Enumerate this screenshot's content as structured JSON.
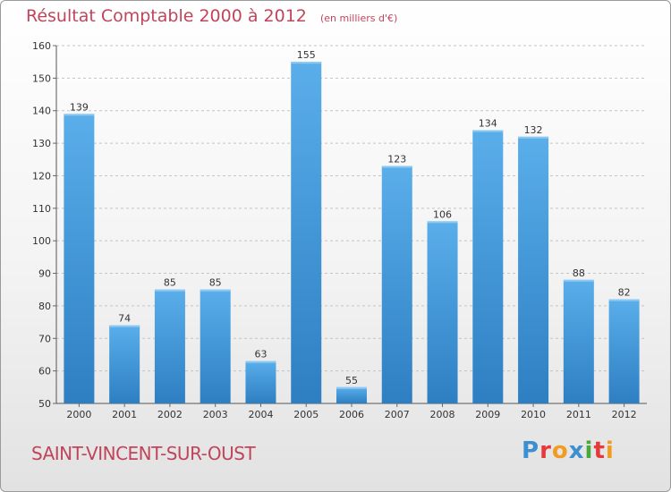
{
  "header": {
    "title": "Résultat Comptable 2000 à 2012",
    "subtitle": "(en milliers d'€)"
  },
  "footer": {
    "town": "SAINT-VINCENT-SUR-OUST",
    "brand": "Proxiti"
  },
  "colors": {
    "bar_light": "#5aaeea",
    "bar_dark": "#2d7fc2",
    "title": "#c0455a",
    "brand_letters": [
      "#3c8fd0",
      "#e63a3a",
      "#f29c1f",
      "#3c8fd0",
      "#4aa83a",
      "#e63a3a",
      "#f29c1f"
    ]
  },
  "chart_data": {
    "type": "bar",
    "title": "Résultat Comptable 2000 à 2012",
    "categories": [
      "2000",
      "2001",
      "2002",
      "2003",
      "2004",
      "2005",
      "2006",
      "2007",
      "2008",
      "2009",
      "2010",
      "2011",
      "2012"
    ],
    "values": [
      139,
      74,
      85,
      85,
      63,
      155,
      55,
      123,
      106,
      134,
      132,
      88,
      82
    ],
    "ylim": [
      50,
      160
    ],
    "yticks": [
      50,
      60,
      70,
      80,
      90,
      100,
      110,
      120,
      130,
      140,
      150,
      160
    ],
    "grid": true,
    "xlabel": "",
    "ylabel": ""
  }
}
